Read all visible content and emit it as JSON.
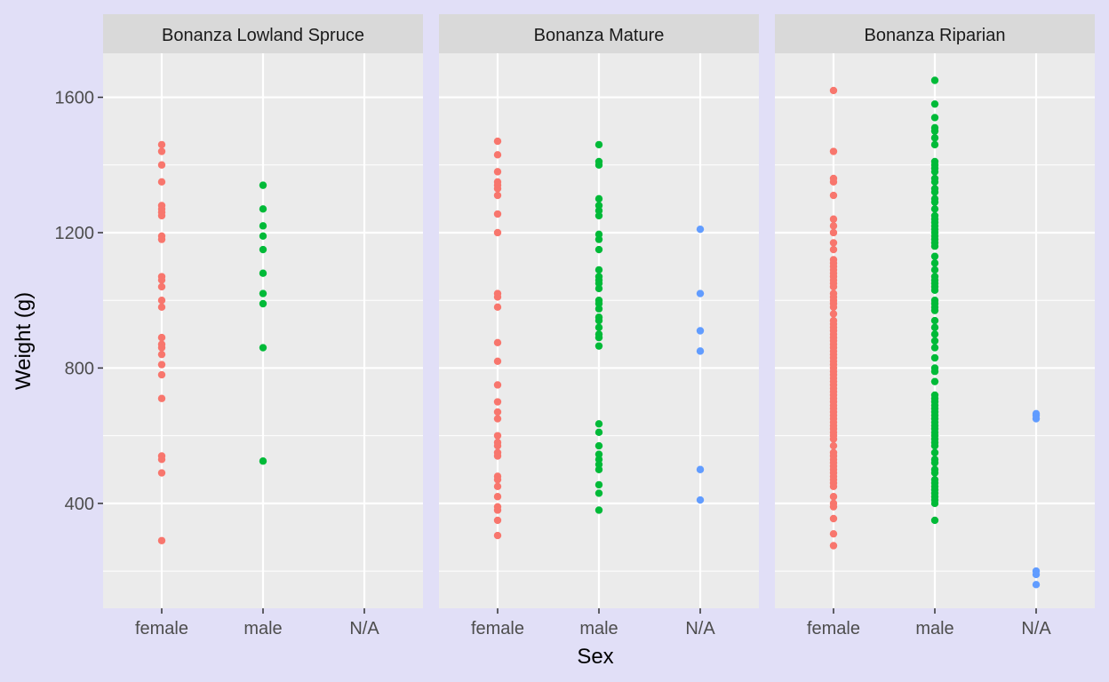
{
  "chart_data": {
    "type": "scatter",
    "xlabel": "Sex",
    "ylabel": "Weight (g)",
    "ylim": [
      90,
      1730
    ],
    "y_ticks": [
      400,
      800,
      1200,
      1600
    ],
    "categories": [
      "female",
      "male",
      "N/A"
    ],
    "colors": {
      "female": "#F8766D",
      "male": "#00BA38",
      "N/A": "#619CFF"
    },
    "panel_background": "#EBEBEB",
    "strip_background": "#D9D9D9",
    "grid": true,
    "legend": "none",
    "facets": [
      {
        "title": "Bonanza Lowland Spruce",
        "points": {
          "female": [
            1460,
            1440,
            1400,
            1350,
            1280,
            1270,
            1260,
            1250,
            1190,
            1180,
            1070,
            1060,
            1040,
            1000,
            980,
            890,
            870,
            860,
            840,
            810,
            780,
            710,
            540,
            530,
            490,
            290
          ],
          "male": [
            1340,
            1270,
            1220,
            1190,
            1150,
            1080,
            1020,
            990,
            860,
            525
          ],
          "N/A": []
        }
      },
      {
        "title": "Bonanza Mature",
        "points": {
          "female": [
            1470,
            1430,
            1380,
            1350,
            1340,
            1330,
            1310,
            1255,
            1200,
            1020,
            1010,
            980,
            875,
            820,
            750,
            700,
            670,
            650,
            600,
            580,
            570,
            550,
            540,
            480,
            470,
            450,
            420,
            390,
            380,
            350,
            305
          ],
          "male": [
            1460,
            1410,
            1400,
            1300,
            1280,
            1265,
            1250,
            1195,
            1180,
            1150,
            1090,
            1070,
            1060,
            1050,
            1035,
            1000,
            990,
            975,
            950,
            940,
            920,
            900,
            890,
            865,
            635,
            610,
            570,
            545,
            530,
            515,
            500,
            455,
            430,
            380
          ],
          "N/A": [
            1210,
            1020,
            910,
            850,
            500,
            410
          ]
        }
      },
      {
        "title": "Bonanza Riparian",
        "points": {
          "female": [
            1620,
            1440,
            1360,
            1350,
            1310,
            1240,
            1220,
            1200,
            1170,
            1150,
            1120,
            1110,
            1100,
            1090,
            1080,
            1070,
            1060,
            1050,
            1040,
            1020,
            1010,
            1000,
            990,
            980,
            960,
            940,
            930,
            920,
            910,
            900,
            890,
            880,
            870,
            860,
            850,
            840,
            830,
            820,
            810,
            800,
            790,
            780,
            770,
            760,
            750,
            740,
            730,
            720,
            710,
            700,
            690,
            680,
            670,
            660,
            650,
            640,
            630,
            620,
            610,
            600,
            590,
            570,
            550,
            540,
            530,
            520,
            510,
            500,
            490,
            480,
            470,
            460,
            450,
            420,
            400,
            390,
            355,
            310,
            275
          ],
          "male": [
            1650,
            1580,
            1540,
            1510,
            1500,
            1480,
            1460,
            1410,
            1400,
            1390,
            1380,
            1360,
            1350,
            1330,
            1320,
            1300,
            1290,
            1270,
            1250,
            1240,
            1230,
            1220,
            1210,
            1200,
            1190,
            1180,
            1170,
            1160,
            1130,
            1110,
            1090,
            1070,
            1060,
            1050,
            1040,
            1030,
            1000,
            990,
            980,
            970,
            940,
            920,
            900,
            880,
            860,
            830,
            800,
            790,
            760,
            720,
            710,
            700,
            690,
            680,
            670,
            660,
            650,
            640,
            630,
            620,
            610,
            600,
            590,
            580,
            570,
            550,
            530,
            520,
            500,
            490,
            470,
            460,
            450,
            440,
            430,
            420,
            410,
            400,
            350
          ],
          "N/A": [
            665,
            660,
            650,
            200,
            190,
            160
          ]
        }
      }
    ]
  }
}
